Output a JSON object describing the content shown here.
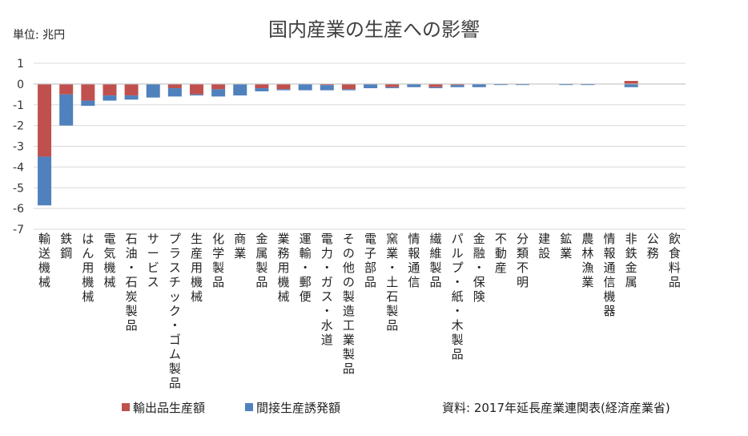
{
  "chart_data": {
    "type": "bar",
    "stacked": true,
    "title": "国内産業の生産への影響",
    "unit_label": "単位: 兆円",
    "source": "資料: 2017年延長産業連関表(経済産業省)",
    "ylim": [
      -7,
      1
    ],
    "yticks": [
      1,
      0,
      -1,
      -2,
      -3,
      -4,
      -5,
      -6,
      -7
    ],
    "grid": true,
    "legend_position": "bottom",
    "categories": [
      "輸送機械",
      "鉄鋼",
      "はん用機械",
      "電気機械",
      "石油・石炭製品",
      "サービス",
      "プラスチック・ゴム製品",
      "生産用機械",
      "化学製品",
      "商業",
      "金属製品",
      "業務用機械",
      "運輸・郵便",
      "電力・ガス・水道",
      "その他の製造工業製品",
      "電子部品",
      "窯業・土石製品",
      "情報通信",
      "繊維製品",
      "パルプ・紙・木製品",
      "金融・保険",
      "不動産",
      "分類不明",
      "建設",
      "鉱業",
      "農林漁業",
      "情報通信機器",
      "非鉄金属",
      "公務",
      "飲食料品"
    ],
    "series": [
      {
        "name": "輸出品生産額",
        "color": "#c0504d",
        "values": [
          -3.5,
          -0.5,
          -0.8,
          -0.55,
          -0.55,
          0,
          -0.2,
          -0.5,
          -0.25,
          0,
          -0.2,
          -0.25,
          0,
          -0.05,
          -0.25,
          0,
          -0.15,
          0,
          -0.15,
          -0.05,
          0,
          0,
          0,
          0,
          0,
          0,
          0,
          0.15,
          0,
          0
        ]
      },
      {
        "name": "間接生産誘発額",
        "color": "#4f81bd",
        "values": [
          -2.35,
          -1.5,
          -0.25,
          -0.25,
          -0.2,
          -0.65,
          -0.4,
          -0.05,
          -0.35,
          -0.55,
          -0.15,
          -0.05,
          -0.3,
          -0.25,
          -0.05,
          -0.2,
          -0.05,
          -0.15,
          -0.05,
          -0.1,
          -0.15,
          -0.05,
          -0.05,
          0,
          -0.05,
          -0.05,
          0,
          -0.15,
          0,
          0
        ]
      }
    ]
  }
}
